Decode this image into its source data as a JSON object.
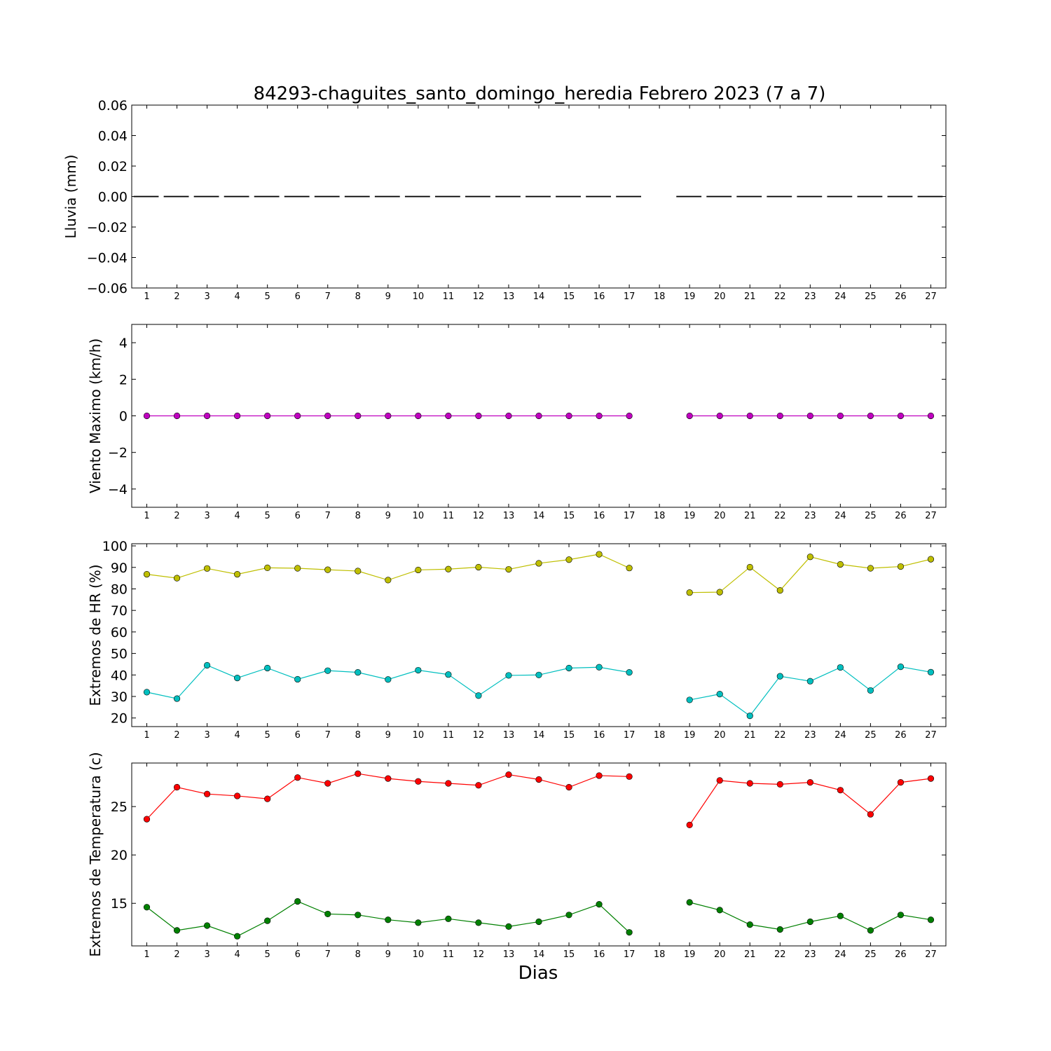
{
  "title": "84293-chaguites_santo_domingo_heredia Febrero 2023  (7 a 7)",
  "xlabel": "Dias",
  "chart_data": [
    {
      "type": "bar",
      "ylabel": "Lluvia (mm)",
      "ylim": [
        -0.06,
        0.06
      ],
      "yticks": [
        "0.06",
        "0.04",
        "0.02",
        "0.00",
        "−0.02",
        "−0.04",
        "−0.06"
      ],
      "yticks_values": [
        0.06,
        0.04,
        0.02,
        0.0,
        -0.02,
        -0.04,
        -0.06
      ],
      "categories": [
        "1",
        "2",
        "3",
        "4",
        "5",
        "6",
        "7",
        "8",
        "9",
        "10",
        "11",
        "12",
        "13",
        "14",
        "15",
        "16",
        "17",
        "18",
        "19",
        "20",
        "21",
        "22",
        "23",
        "24",
        "25",
        "26",
        "27"
      ],
      "series": [
        {
          "color": "#000000",
          "values": [
            0,
            0,
            0,
            0,
            0,
            0,
            0,
            0,
            0,
            0,
            0,
            0,
            0,
            0,
            0,
            0,
            0,
            null,
            0,
            0,
            0,
            0,
            0,
            0,
            0,
            0,
            0
          ]
        }
      ]
    },
    {
      "type": "line",
      "ylabel": "Viento Maximo (km/h)",
      "ylim": [
        -5,
        5
      ],
      "yticks": [
        "4",
        "2",
        "0",
        "−2",
        "−4"
      ],
      "yticks_values": [
        4,
        2,
        0,
        -2,
        -4
      ],
      "categories": [
        "1",
        "2",
        "3",
        "4",
        "5",
        "6",
        "7",
        "8",
        "9",
        "10",
        "11",
        "12",
        "13",
        "14",
        "15",
        "16",
        "17",
        "18",
        "19",
        "20",
        "21",
        "22",
        "23",
        "24",
        "25",
        "26",
        "27"
      ],
      "series": [
        {
          "color": "#bf00bf",
          "values": [
            0,
            0,
            0,
            0,
            0,
            0,
            0,
            0,
            0,
            0,
            0,
            0,
            0,
            0,
            0,
            0,
            0,
            null,
            0,
            0,
            0,
            0,
            0,
            0,
            0,
            0,
            0
          ]
        }
      ]
    },
    {
      "type": "line",
      "ylabel": "Extremos de HR (%)",
      "ylim": [
        16,
        101
      ],
      "yticks": [
        "100",
        "90",
        "80",
        "70",
        "60",
        "50",
        "40",
        "30",
        "20"
      ],
      "yticks_values": [
        100,
        90,
        80,
        70,
        60,
        50,
        40,
        30,
        20
      ],
      "categories": [
        "1",
        "2",
        "3",
        "4",
        "5",
        "6",
        "7",
        "8",
        "9",
        "10",
        "11",
        "12",
        "13",
        "14",
        "15",
        "16",
        "17",
        "18",
        "19",
        "20",
        "21",
        "22",
        "23",
        "24",
        "25",
        "26",
        "27"
      ],
      "series": [
        {
          "color": "#bfbf00",
          "values": [
            86.8,
            85.0,
            89.5,
            86.8,
            89.8,
            89.6,
            88.9,
            88.3,
            84.1,
            88.8,
            89.2,
            90.1,
            89.1,
            91.9,
            93.6,
            96.1,
            89.7,
            null,
            78.3,
            78.5,
            90.1,
            79.3,
            94.9,
            91.4,
            89.6,
            90.4,
            93.8
          ]
        },
        {
          "color": "#00bfbf",
          "values": [
            32.0,
            29.0,
            44.5,
            38.6,
            43.2,
            38.0,
            42.0,
            41.2,
            37.9,
            42.2,
            40.2,
            30.4,
            39.8,
            40.0,
            43.2,
            43.6,
            41.2,
            null,
            28.4,
            31.1,
            21.0,
            39.4,
            37.1,
            43.5,
            32.8,
            43.8,
            41.3
          ]
        }
      ]
    },
    {
      "type": "line",
      "ylabel": "Extremos de Temperatura (c)",
      "ylim": [
        10.6,
        29.5
      ],
      "yticks": [
        "25",
        "20",
        "15"
      ],
      "yticks_values": [
        25,
        20,
        15
      ],
      "categories": [
        "1",
        "2",
        "3",
        "4",
        "5",
        "6",
        "7",
        "8",
        "9",
        "10",
        "11",
        "12",
        "13",
        "14",
        "15",
        "16",
        "17",
        "18",
        "19",
        "20",
        "21",
        "22",
        "23",
        "24",
        "25",
        "26",
        "27"
      ],
      "series": [
        {
          "color": "#ff0000",
          "values": [
            23.7,
            27.0,
            26.3,
            26.1,
            25.8,
            28.0,
            27.4,
            28.4,
            27.9,
            27.6,
            27.4,
            27.2,
            28.3,
            27.8,
            27.0,
            28.2,
            28.1,
            null,
            23.1,
            27.7,
            27.4,
            27.3,
            27.5,
            26.7,
            24.2,
            27.5,
            27.9
          ]
        },
        {
          "color": "#008000",
          "values": [
            14.6,
            12.2,
            12.7,
            11.6,
            13.2,
            15.2,
            13.9,
            13.8,
            13.3,
            13.0,
            13.4,
            13.0,
            12.6,
            13.1,
            13.8,
            14.9,
            12.0,
            null,
            15.1,
            14.3,
            12.8,
            12.3,
            13.1,
            13.7,
            12.2,
            13.8,
            13.3
          ]
        }
      ]
    }
  ]
}
